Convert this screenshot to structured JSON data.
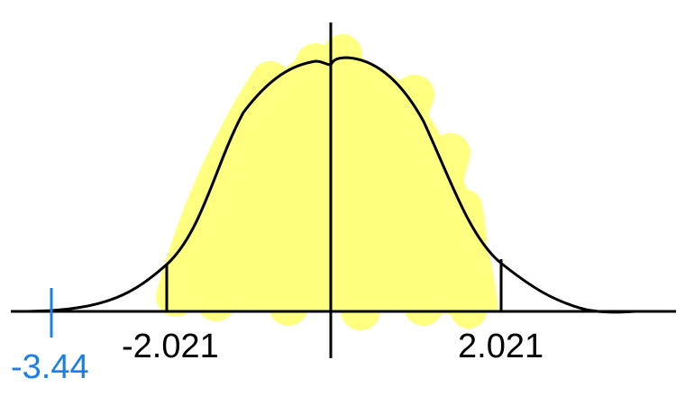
{
  "labels": {
    "left_critical": "-2.021",
    "right_critical": "2.021",
    "test_statistic": "-3.44"
  },
  "colors": {
    "curve": "#000000",
    "shading": "#ffff80",
    "test_statistic": "#1a7fe6"
  }
}
